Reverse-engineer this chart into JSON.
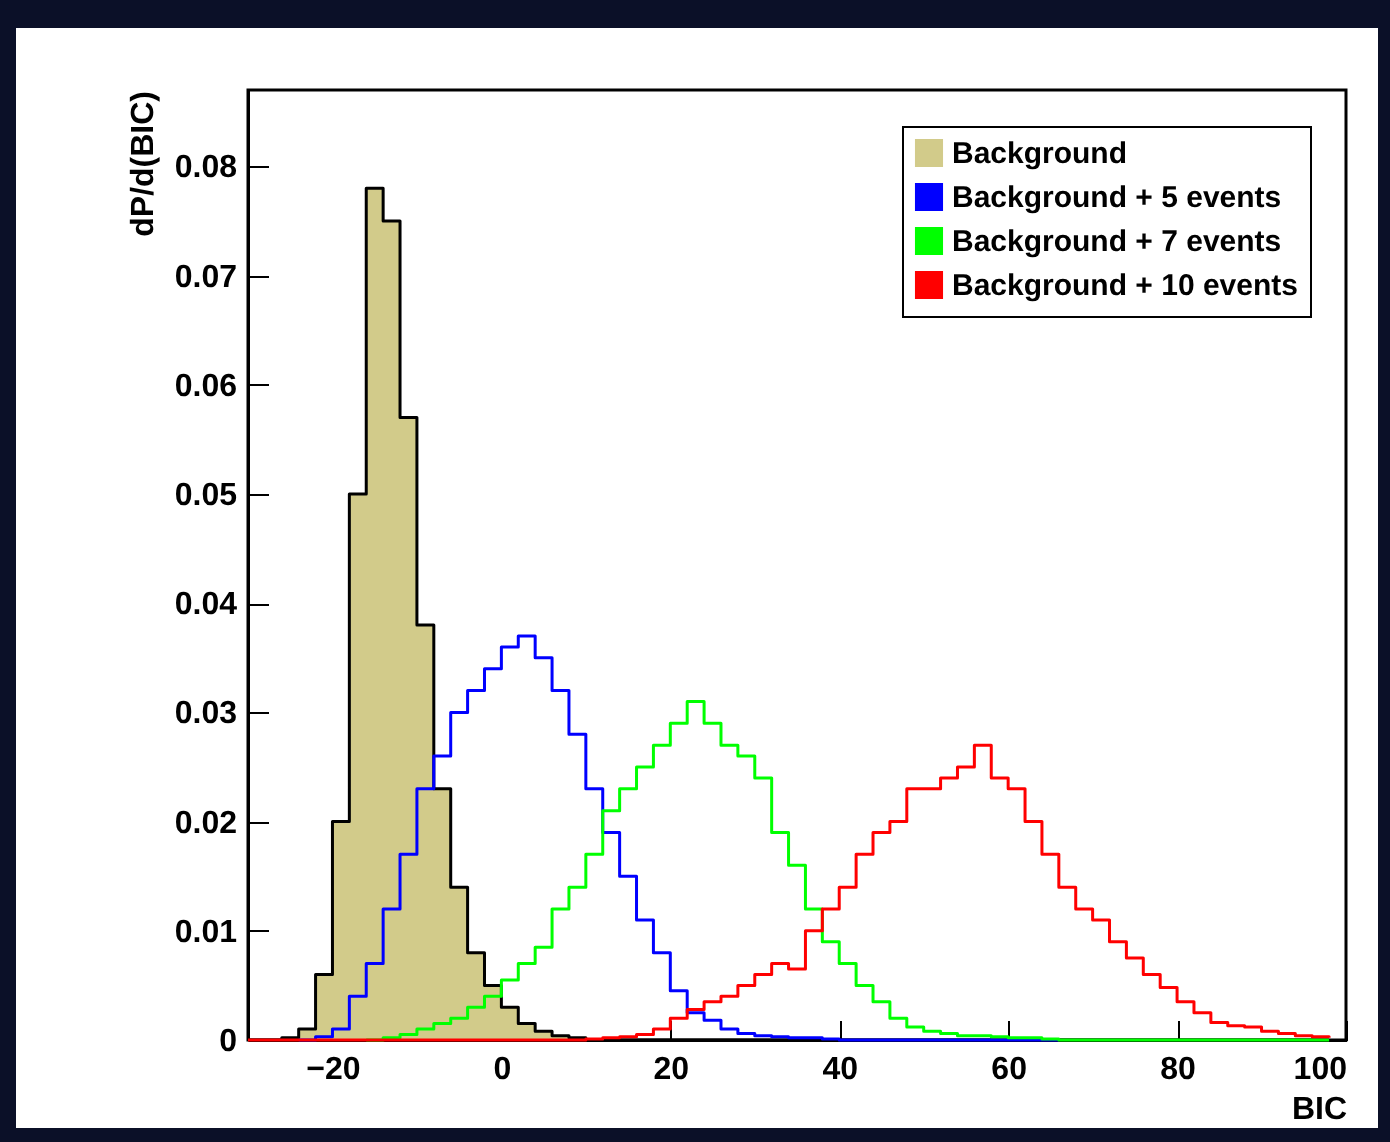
{
  "chart_data": {
    "type": "step",
    "xlabel": "BIC",
    "ylabel": "dP/d(BIC)",
    "x": [
      -30,
      -28,
      -26,
      -24,
      -22,
      -20,
      -18,
      -16,
      -14,
      -12,
      -10,
      -8,
      -6,
      -4,
      -2,
      0,
      2,
      4,
      6,
      8,
      10,
      12,
      14,
      16,
      18,
      20,
      22,
      24,
      26,
      28,
      30,
      32,
      34,
      36,
      38,
      40,
      42,
      44,
      46,
      48,
      50,
      52,
      54,
      56,
      58,
      60,
      62,
      64,
      66,
      68,
      70,
      72,
      74,
      76,
      78,
      80,
      82,
      84,
      86,
      88,
      90,
      92,
      94,
      96,
      98
    ],
    "series": [
      {
        "name": "Background",
        "type": "area",
        "color": "#d2cb8a",
        "values": [
          0,
          0,
          0.0002,
          0.001,
          0.006,
          0.02,
          0.05,
          0.078,
          0.075,
          0.057,
          0.038,
          0.023,
          0.014,
          0.008,
          0.005,
          0.003,
          0.0015,
          0.0008,
          0.0004,
          0.0002,
          0,
          0,
          0,
          0,
          0,
          0,
          0,
          0,
          0,
          0,
          0,
          0,
          0,
          0,
          0,
          0,
          0,
          0,
          0,
          0,
          0,
          0,
          0,
          0,
          0,
          0,
          0,
          0,
          0,
          0,
          0,
          0,
          0,
          0,
          0,
          0,
          0,
          0,
          0,
          0,
          0,
          0,
          0,
          0,
          0
        ]
      },
      {
        "name": "Background + 5 events",
        "color": "#0000ff",
        "values": [
          null,
          null,
          null,
          0,
          0.0003,
          0.001,
          0.004,
          0.007,
          0.012,
          0.017,
          0.023,
          0.026,
          0.03,
          0.032,
          0.034,
          0.036,
          0.037,
          0.035,
          0.032,
          0.028,
          0.023,
          0.019,
          0.015,
          0.011,
          0.008,
          0.0045,
          0.0025,
          0.0018,
          0.001,
          0.0006,
          0.0004,
          0.0003,
          0.0002,
          0.0002,
          0.0001,
          0,
          0,
          0,
          0,
          0,
          0,
          0,
          0,
          0,
          0,
          0,
          0,
          0,
          0,
          null,
          null,
          null,
          null,
          null,
          null,
          null,
          null,
          null,
          null,
          null,
          null,
          null,
          null,
          null,
          null
        ]
      },
      {
        "name": "Background + 7 events",
        "color": "#00ff00",
        "values": [
          null,
          null,
          null,
          null,
          null,
          null,
          null,
          0,
          0.0002,
          0.0005,
          0.001,
          0.0015,
          0.002,
          0.003,
          0.004,
          0.0055,
          0.007,
          0.0085,
          0.012,
          0.014,
          0.017,
          0.021,
          0.023,
          0.025,
          0.027,
          0.029,
          0.031,
          0.029,
          0.027,
          0.026,
          0.024,
          0.019,
          0.016,
          0.012,
          0.009,
          0.007,
          0.005,
          0.0035,
          0.002,
          0.0012,
          0.0008,
          0.0006,
          0.0004,
          0.0004,
          0.0003,
          0.0002,
          0.0002,
          0.0001,
          0,
          0,
          0,
          0,
          0,
          0,
          0,
          0,
          0,
          0,
          0,
          0,
          0,
          0,
          0,
          0,
          0
        ]
      },
      {
        "name": "Background + 10 events",
        "color": "#ff0000",
        "values": [
          0,
          0,
          0,
          0,
          0,
          0,
          0,
          0,
          0,
          0,
          0,
          0,
          0,
          0,
          0,
          0,
          0,
          0,
          0,
          0,
          0.0001,
          0.0002,
          0.0003,
          0.0005,
          0.001,
          0.002,
          0.0028,
          0.0035,
          0.004,
          0.005,
          0.006,
          0.007,
          0.0065,
          0.01,
          0.012,
          0.014,
          0.017,
          0.019,
          0.02,
          0.023,
          0.023,
          0.024,
          0.025,
          0.027,
          0.024,
          0.023,
          0.02,
          0.017,
          0.014,
          0.012,
          0.011,
          0.009,
          0.0075,
          0.006,
          0.0048,
          0.0035,
          0.0025,
          0.0016,
          0.0013,
          0.0012,
          0.0008,
          0.0006,
          0.0004,
          0.0003,
          0.0002
        ]
      }
    ],
    "xlim": [
      -30,
      100
    ],
    "xticks": [
      -20,
      0,
      20,
      40,
      60,
      80,
      100
    ],
    "ylim": [
      0,
      0.087
    ],
    "yticks": [
      0,
      0.01,
      0.02,
      0.03,
      0.04,
      0.05,
      0.06,
      0.07,
      0.08
    ],
    "legend": "top right"
  }
}
